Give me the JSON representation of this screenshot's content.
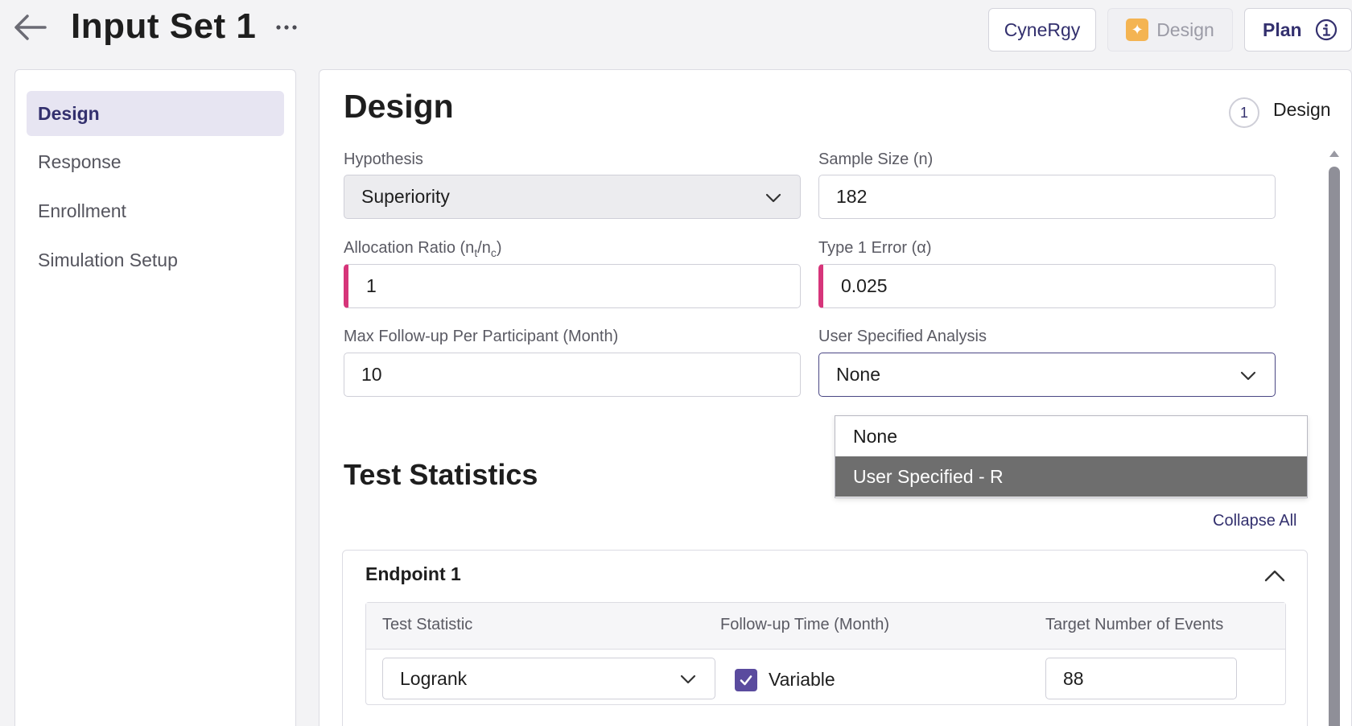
{
  "header": {
    "title": "Input Set 1",
    "more_label": "···",
    "buttons": {
      "cynergy": "CyneRgy",
      "design": "Design",
      "plan": "Plan"
    },
    "icons": {
      "back": "arrow-left-icon",
      "more": "ellipsis-icon",
      "design": "sparkle-icon",
      "plan": "info-icon"
    }
  },
  "sidebar": {
    "items": [
      {
        "label": "Design",
        "active": true
      },
      {
        "label": "Response",
        "active": false
      },
      {
        "label": "Enrollment",
        "active": false
      },
      {
        "label": "Simulation Setup",
        "active": false
      }
    ]
  },
  "main": {
    "title": "Design",
    "step": {
      "number": "1",
      "label": "Design"
    },
    "fields": {
      "hypothesis": {
        "label": "Hypothesis",
        "value": "Superiority"
      },
      "sample_size": {
        "label": "Sample Size (n)",
        "value": "182"
      },
      "allocation_ratio": {
        "label_prefix": "Allocation Ratio (n",
        "sub_t": "t",
        "label_mid": "/n",
        "sub_c": "c",
        "label_suffix": ")",
        "value": "1"
      },
      "type1_error": {
        "label": "Type 1 Error (α)",
        "value": "0.025"
      },
      "max_followup": {
        "label": "Max Follow-up Per Participant (Month)",
        "value": "10"
      },
      "user_analysis": {
        "label": "User Specified Analysis",
        "value": "None",
        "options": [
          "None",
          "User Specified - R"
        ],
        "highlighted": "User Specified - R"
      }
    },
    "test_statistics": {
      "title": "Test Statistics",
      "collapse_all": "Collapse All",
      "endpoint": {
        "title": "Endpoint 1",
        "columns": [
          "Test Statistic",
          "Follow-up Time (Month)",
          "Target Number of Events"
        ],
        "test_statistic": "Logrank",
        "followup_checkbox_label": "Variable",
        "followup_checked": true,
        "target_events": "88"
      }
    }
  },
  "colors": {
    "accent": "#33306e",
    "error_bar": "#d6357a",
    "checkbox": "#5a4b9e",
    "highlight": "#6e6e6e",
    "spark": "#f4b452"
  }
}
